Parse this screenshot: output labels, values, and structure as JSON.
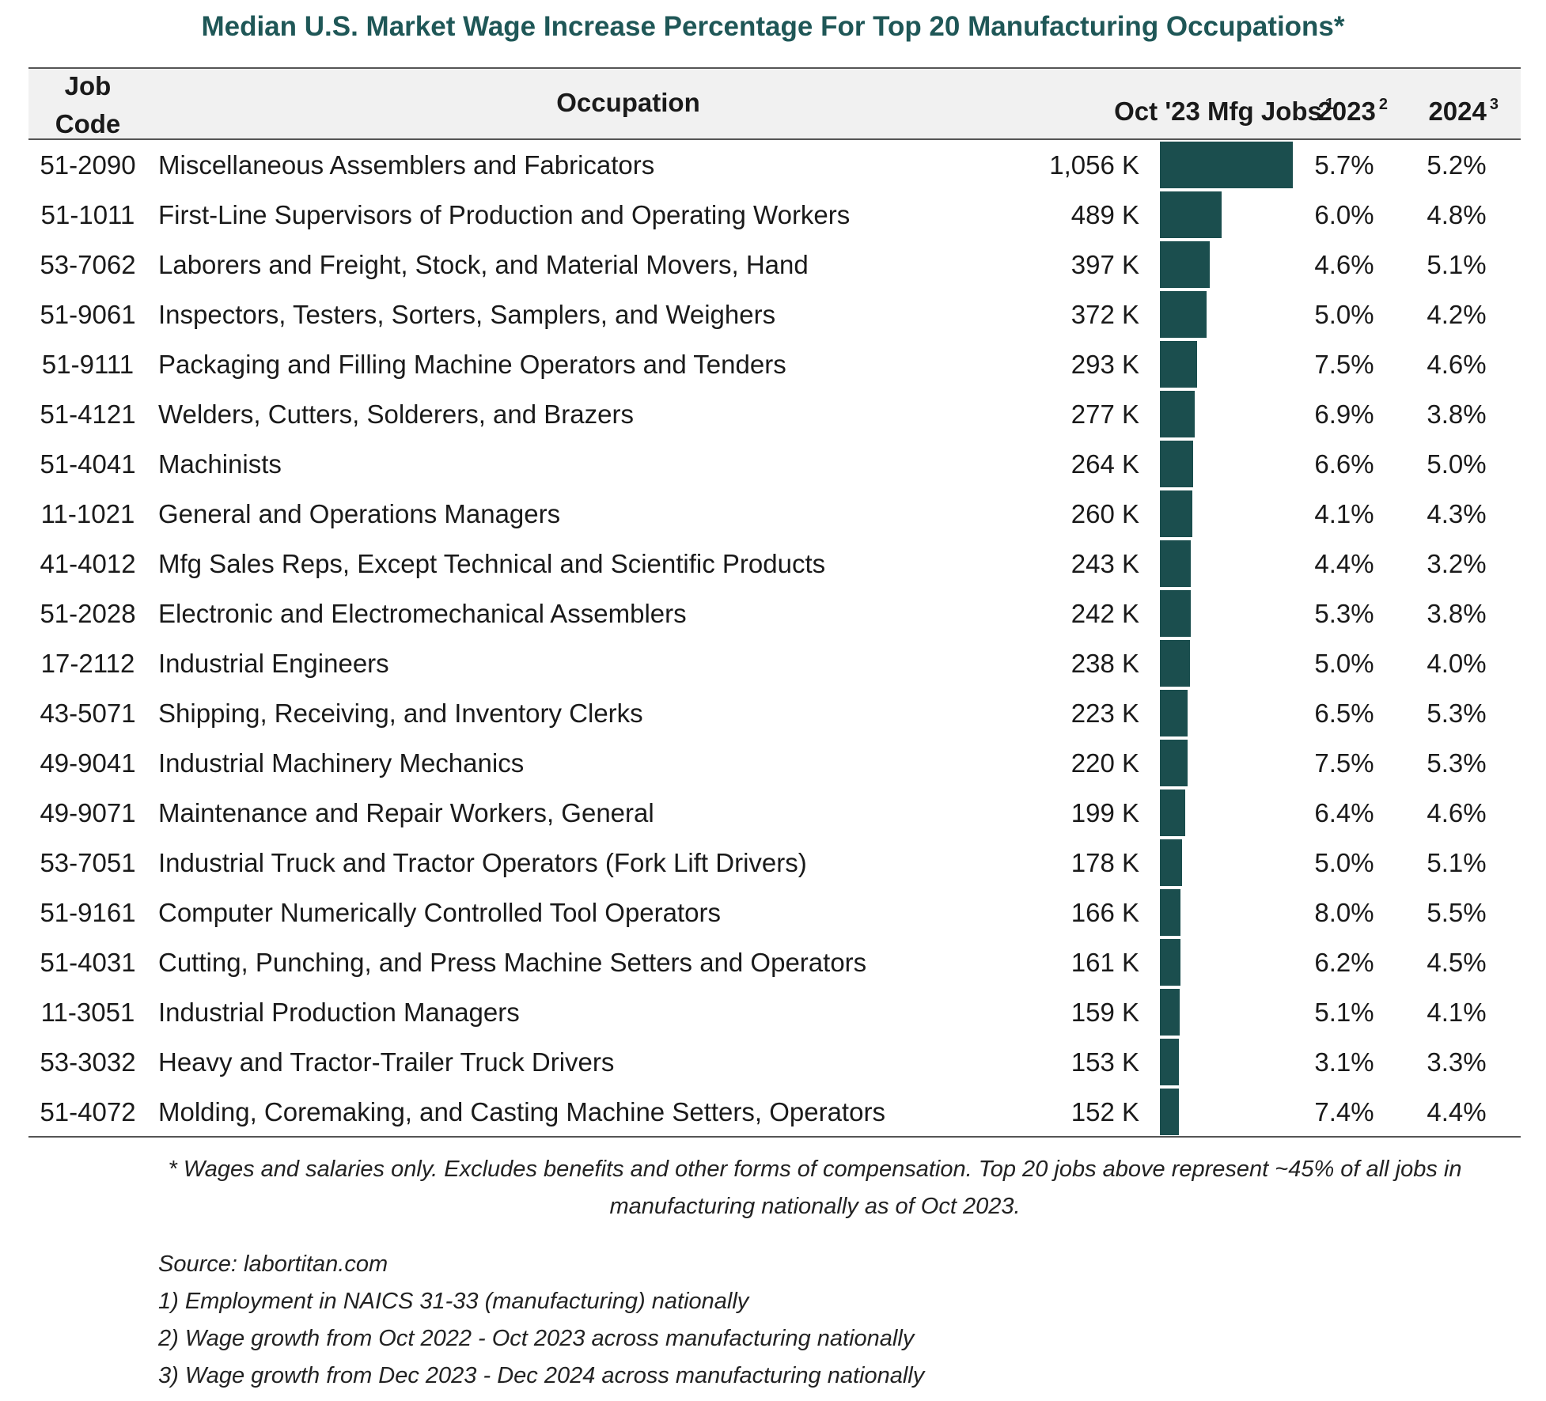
{
  "chart_data": {
    "type": "table",
    "title": "Median U.S. Market Wage Increase Percentage For Top 20 Manufacturing Occupations*",
    "columns": [
      {
        "label": "Job Code",
        "sup": ""
      },
      {
        "label": "Occupation",
        "sup": ""
      },
      {
        "label": "Oct '23 Mfg Jobs",
        "sup": "1"
      },
      {
        "label": "2023",
        "sup": "2"
      },
      {
        "label": "2024",
        "sup": "3"
      }
    ],
    "bar_color": "#1b4e4e",
    "bar_max": 1056,
    "rows": [
      {
        "code": "51-2090",
        "occupation": "Miscellaneous Assemblers and Fabricators",
        "jobs_label": "1,056 K",
        "jobs": 1056,
        "y2023": "5.7%",
        "y2024": "5.2%"
      },
      {
        "code": "51-1011",
        "occupation": "First-Line Supervisors of Production and Operating Workers",
        "jobs_label": "489 K",
        "jobs": 489,
        "y2023": "6.0%",
        "y2024": "4.8%"
      },
      {
        "code": "53-7062",
        "occupation": "Laborers and Freight, Stock, and Material Movers, Hand",
        "jobs_label": "397 K",
        "jobs": 397,
        "y2023": "4.6%",
        "y2024": "5.1%"
      },
      {
        "code": "51-9061",
        "occupation": "Inspectors, Testers, Sorters, Samplers, and Weighers",
        "jobs_label": "372 K",
        "jobs": 372,
        "y2023": "5.0%",
        "y2024": "4.2%"
      },
      {
        "code": "51-9111",
        "occupation": "Packaging and Filling Machine Operators and Tenders",
        "jobs_label": "293 K",
        "jobs": 293,
        "y2023": "7.5%",
        "y2024": "4.6%"
      },
      {
        "code": "51-4121",
        "occupation": "Welders, Cutters, Solderers, and Brazers",
        "jobs_label": "277 K",
        "jobs": 277,
        "y2023": "6.9%",
        "y2024": "3.8%"
      },
      {
        "code": "51-4041",
        "occupation": "Machinists",
        "jobs_label": "264 K",
        "jobs": 264,
        "y2023": "6.6%",
        "y2024": "5.0%"
      },
      {
        "code": "11-1021",
        "occupation": "General and Operations Managers",
        "jobs_label": "260 K",
        "jobs": 260,
        "y2023": "4.1%",
        "y2024": "4.3%"
      },
      {
        "code": "41-4012",
        "occupation": "Mfg Sales Reps, Except Technical and Scientific Products",
        "jobs_label": "243 K",
        "jobs": 243,
        "y2023": "4.4%",
        "y2024": "3.2%"
      },
      {
        "code": "51-2028",
        "occupation": "Electronic and Electromechanical Assemblers",
        "jobs_label": "242 K",
        "jobs": 242,
        "y2023": "5.3%",
        "y2024": "3.8%"
      },
      {
        "code": "17-2112",
        "occupation": "Industrial Engineers",
        "jobs_label": "238 K",
        "jobs": 238,
        "y2023": "5.0%",
        "y2024": "4.0%"
      },
      {
        "code": "43-5071",
        "occupation": "Shipping, Receiving, and Inventory Clerks",
        "jobs_label": "223 K",
        "jobs": 223,
        "y2023": "6.5%",
        "y2024": "5.3%"
      },
      {
        "code": "49-9041",
        "occupation": "Industrial Machinery Mechanics",
        "jobs_label": "220 K",
        "jobs": 220,
        "y2023": "7.5%",
        "y2024": "5.3%"
      },
      {
        "code": "49-9071",
        "occupation": "Maintenance and Repair Workers, General",
        "jobs_label": "199 K",
        "jobs": 199,
        "y2023": "6.4%",
        "y2024": "4.6%"
      },
      {
        "code": "53-7051",
        "occupation": "Industrial Truck and Tractor Operators (Fork Lift Drivers)",
        "jobs_label": "178 K",
        "jobs": 178,
        "y2023": "5.0%",
        "y2024": "5.1%"
      },
      {
        "code": "51-9161",
        "occupation": "Computer Numerically Controlled Tool Operators",
        "jobs_label": "166 K",
        "jobs": 166,
        "y2023": "8.0%",
        "y2024": "5.5%"
      },
      {
        "code": "51-4031",
        "occupation": "Cutting, Punching, and Press Machine Setters and Operators",
        "jobs_label": "161 K",
        "jobs": 161,
        "y2023": "6.2%",
        "y2024": "4.5%"
      },
      {
        "code": "11-3051",
        "occupation": "Industrial Production Managers",
        "jobs_label": "159 K",
        "jobs": 159,
        "y2023": "5.1%",
        "y2024": "4.1%"
      },
      {
        "code": "53-3032",
        "occupation": "Heavy and Tractor-Trailer Truck Drivers",
        "jobs_label": "153 K",
        "jobs": 153,
        "y2023": "3.1%",
        "y2024": "3.3%"
      },
      {
        "code": "51-4072",
        "occupation": "Molding, Coremaking, and Casting Machine Setters, Operators",
        "jobs_label": "152 K",
        "jobs": 152,
        "y2023": "7.4%",
        "y2024": "4.4%"
      }
    ],
    "footnote": "* Wages and salaries only. Excludes benefits and other forms of compensation. Top 20 jobs above represent ~45% of all jobs in manufacturing nationally as of Oct 2023.",
    "notes": [
      "Source: labortitan.com",
      "1) Employment in NAICS 31-33 (manufacturing) nationally",
      "2) Wage growth from Oct 2022 - Oct 2023 across manufacturing nationally",
      "3) Wage growth from Dec 2023 - Dec 2024 across manufacturing nationally"
    ]
  }
}
